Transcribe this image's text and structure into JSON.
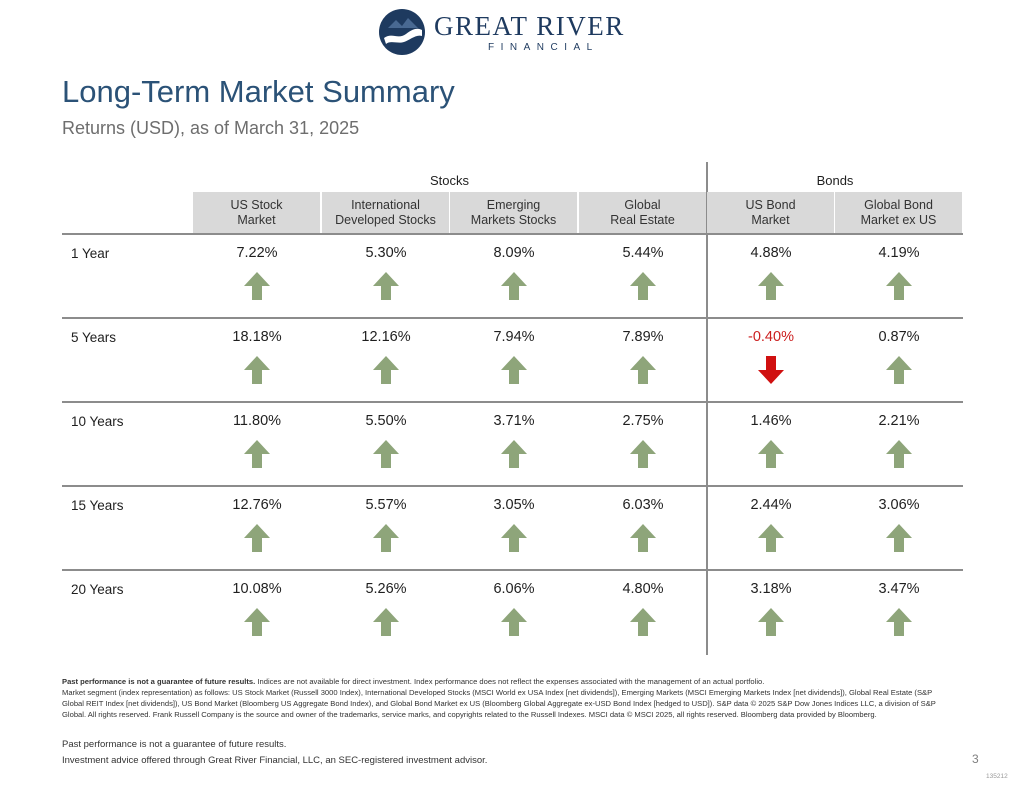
{
  "logo": {
    "name": "GREAT RIVER",
    "sub": "FINANCIAL"
  },
  "title": "Long-Term Market Summary",
  "subtitle": "Returns (USD), as of March 31, 2025",
  "groups": [
    "Stocks",
    "Bonds"
  ],
  "columns": [
    "US Stock\nMarket",
    "International\nDeveloped Stocks",
    "Emerging\nMarkets Stocks",
    "Global\nReal Estate",
    "US Bond\nMarket",
    "Global Bond\nMarket ex US"
  ],
  "rows": [
    {
      "label": "1 Year",
      "values": [
        "7.22%",
        "5.30%",
        "8.09%",
        "5.44%",
        "4.88%",
        "4.19%"
      ],
      "directions": [
        "up",
        "up",
        "up",
        "up",
        "up",
        "up"
      ]
    },
    {
      "label": "5 Years",
      "values": [
        "18.18%",
        "12.16%",
        "7.94%",
        "7.89%",
        "-0.40%",
        "0.87%"
      ],
      "directions": [
        "up",
        "up",
        "up",
        "up",
        "down",
        "up"
      ]
    },
    {
      "label": "10 Years",
      "values": [
        "11.80%",
        "5.50%",
        "3.71%",
        "2.75%",
        "1.46%",
        "2.21%"
      ],
      "directions": [
        "up",
        "up",
        "up",
        "up",
        "up",
        "up"
      ]
    },
    {
      "label": "15 Years",
      "values": [
        "12.76%",
        "5.57%",
        "3.05%",
        "6.03%",
        "2.44%",
        "3.06%"
      ],
      "directions": [
        "up",
        "up",
        "up",
        "up",
        "up",
        "up"
      ]
    },
    {
      "label": "20 Years",
      "values": [
        "10.08%",
        "5.26%",
        "6.06%",
        "4.80%",
        "3.18%",
        "3.47%"
      ],
      "directions": [
        "up",
        "up",
        "up",
        "up",
        "up",
        "up"
      ]
    }
  ],
  "icons": {
    "up": "arrow-up-icon",
    "down": "arrow-down-icon"
  },
  "colors": {
    "up_arrow": "#8ea57a",
    "down_arrow": "#d01010",
    "negative_text": "#cc1f1f",
    "title": "#2b5277"
  },
  "footer": {
    "bold": "Past performance is not a guarantee of future results.",
    "disclosure_1": " Indices are not available for direct investment. Index performance does not reflect the expenses associated with the management of an actual portfolio.",
    "disclosure_2": "Market segment (index representation) as follows: US Stock Market (Russell 3000 Index), International Developed Stocks (MSCI World ex USA Index [net dividends]), Emerging Markets (MSCI Emerging Markets Index [net dividends]), Global Real Estate (S&P Global REIT Index [net dividends]), US Bond Market (Bloomberg US Aggregate Bond Index), and Global Bond Market ex US (Bloomberg Global Aggregate ex-USD Bond Index [hedged to USD]). S&P data © 2025 S&P Dow Jones Indices LLC, a division of S&P Global. All rights reserved. Frank Russell Company is the source and owner of the trademarks, service marks, and copyrights related to the Russell Indexes. MSCI data © MSCI 2025, all rights reserved. Bloomberg data provided by Bloomberg.",
    "past_performance": "Past performance is not a guarantee of future results.",
    "advisor": "Investment advice offered through Great River Financial, LLC, an SEC-registered investment advisor.",
    "page_number": "3",
    "code": "135212"
  }
}
